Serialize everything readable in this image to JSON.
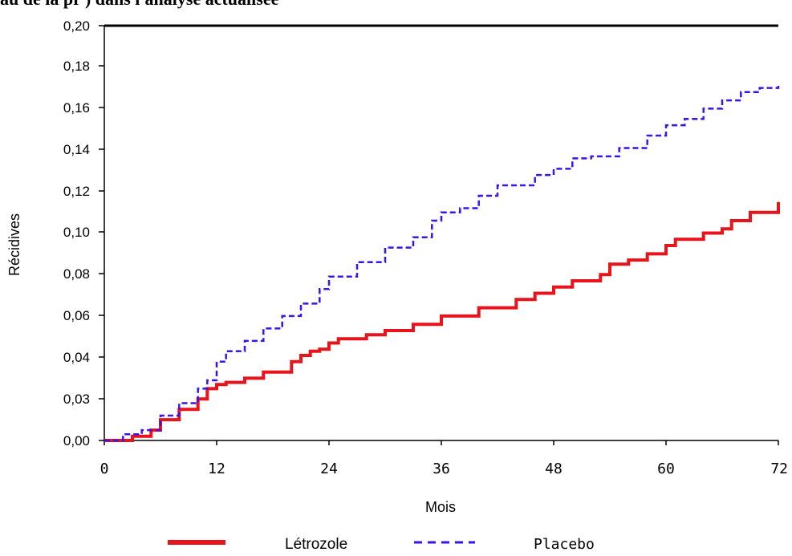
{
  "chart_data": {
    "type": "line",
    "title_fragment": "au de la pr                              ) dans l'analyse actualisée",
    "xlabel": "Mois",
    "ylabel": "Récidives",
    "x_ticks": [
      "0",
      "12",
      "24",
      "36",
      "48",
      "60",
      "72"
    ],
    "y_ticks": [
      "0,00",
      "0,03",
      "0,04",
      "0,06",
      "0,08",
      "0,10",
      "0,12",
      "0,14",
      "0,16",
      "0,18",
      "0,20"
    ],
    "xlim": [
      0,
      72
    ],
    "grid": false,
    "legend_position": "bottom",
    "series": [
      {
        "name": "Létrozole",
        "color": "#e8141c",
        "style": "solid",
        "x": [
          0,
          3,
          5,
          6,
          8,
          10,
          11,
          12,
          13,
          15,
          17,
          20,
          21,
          22,
          23,
          24,
          25,
          28,
          30,
          33,
          36,
          40,
          44,
          46,
          48,
          50,
          53,
          54,
          56,
          58,
          60,
          61,
          64,
          66,
          67,
          69,
          72
        ],
        "y": [
          0.0,
          0.002,
          0.005,
          0.01,
          0.015,
          0.02,
          0.025,
          0.027,
          0.028,
          0.03,
          0.033,
          0.038,
          0.041,
          0.043,
          0.044,
          0.047,
          0.049,
          0.051,
          0.053,
          0.056,
          0.06,
          0.064,
          0.068,
          0.071,
          0.074,
          0.077,
          0.08,
          0.085,
          0.087,
          0.09,
          0.094,
          0.097,
          0.1,
          0.102,
          0.106,
          0.11,
          0.115
        ]
      },
      {
        "name": "Placebo",
        "color": "#3a14e8",
        "style": "dashed",
        "x": [
          0,
          2,
          4,
          6,
          8,
          10,
          11,
          12,
          13,
          15,
          17,
          19,
          21,
          23,
          24,
          27,
          30,
          33,
          35,
          36,
          38,
          40,
          42,
          46,
          48,
          50,
          52,
          55,
          58,
          60,
          62,
          64,
          66,
          68,
          70,
          72
        ],
        "y": [
          0.0,
          0.003,
          0.005,
          0.012,
          0.018,
          0.025,
          0.029,
          0.038,
          0.043,
          0.048,
          0.054,
          0.06,
          0.066,
          0.073,
          0.079,
          0.086,
          0.093,
          0.098,
          0.106,
          0.11,
          0.112,
          0.118,
          0.123,
          0.128,
          0.131,
          0.136,
          0.137,
          0.141,
          0.147,
          0.152,
          0.155,
          0.16,
          0.164,
          0.168,
          0.17,
          0.171
        ]
      }
    ]
  }
}
